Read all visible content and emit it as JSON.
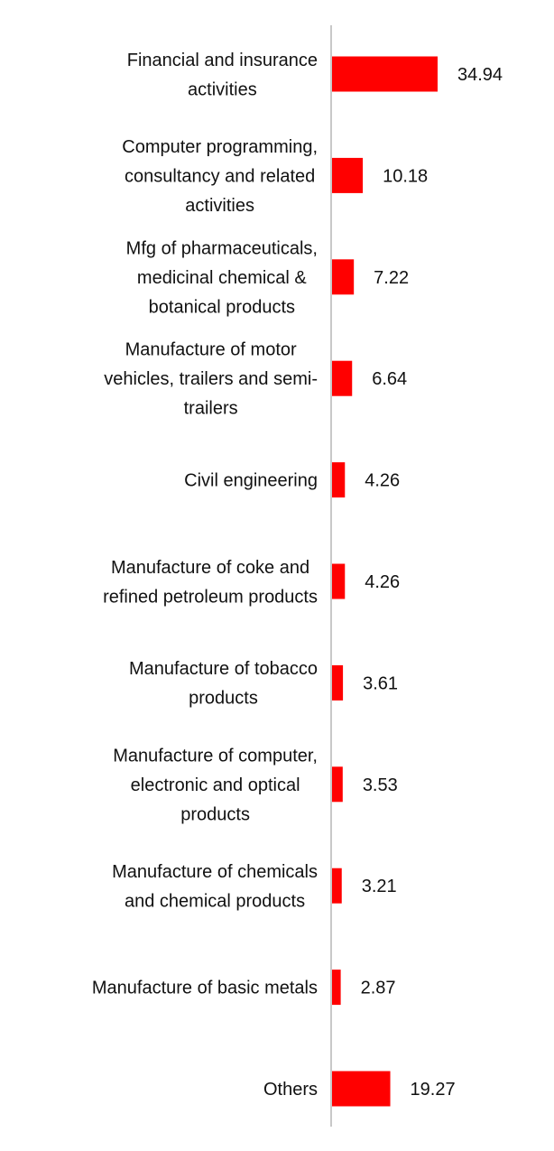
{
  "chart_data": {
    "type": "bar",
    "orientation": "horizontal",
    "categories": [
      "Financial and insurance activities",
      "Computer programming, consultancy and related activities",
      "Mfg of pharmaceuticals, medicinal chemical & botanical products",
      "Manufacture of motor vehicles, trailers and semi-trailers",
      "Civil engineering",
      "Manufacture of coke and refined petroleum products",
      "Manufacture of tobacco products",
      "Manufacture of computer, electronic and optical products",
      "Manufacture of chemicals and chemical products",
      "Manufacture of basic metals",
      "Others"
    ],
    "category_label_lines": [
      [
        "Financial and insurance",
        "activities"
      ],
      [
        "Computer programming,",
        "consultancy and related",
        "activities"
      ],
      [
        "Mfg of pharmaceuticals,",
        "medicinal chemical &",
        "botanical products"
      ],
      [
        "Manufacture of motor",
        "vehicles, trailers and semi-",
        "trailers"
      ],
      [
        "Civil engineering"
      ],
      [
        "Manufacture of coke and",
        "refined petroleum products"
      ],
      [
        "Manufacture of tobacco",
        "products"
      ],
      [
        "Manufacture of computer,",
        "electronic and optical",
        "products"
      ],
      [
        "Manufacture of chemicals",
        "and chemical products"
      ],
      [
        "Manufacture of basic metals"
      ],
      [
        "Others"
      ]
    ],
    "values": [
      34.94,
      10.18,
      7.22,
      6.64,
      4.26,
      4.26,
      3.61,
      3.53,
      3.21,
      2.87,
      19.27
    ],
    "value_labels": [
      "34.94",
      "10.18",
      "7.22",
      "6.64",
      "4.26",
      "4.26",
      "3.61",
      "3.53",
      "3.21",
      "2.87",
      "19.27"
    ],
    "xlim": [
      0,
      35
    ],
    "bar_color": "#ff0000",
    "axis_color": "#c8c8c8",
    "grid": false,
    "legend": "none"
  }
}
